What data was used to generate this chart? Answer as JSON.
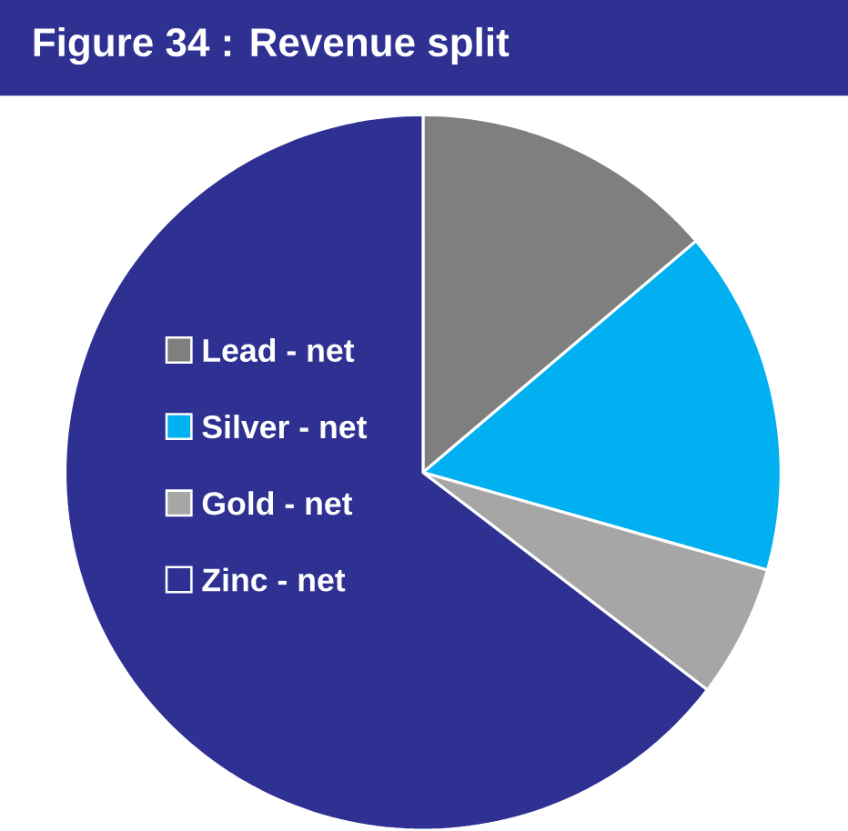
{
  "chart_data": {
    "type": "pie",
    "title": "Figure 34 : Revenue split",
    "categories": [
      "Lead - net",
      "Silver - net",
      "Gold - net",
      "Zinc - net"
    ],
    "values": [
      13.8,
      15.6,
      6.0,
      64.6
    ],
    "colors": [
      "#7f7f7f",
      "#00b0f0",
      "#a6a6a6",
      "#2e3192"
    ],
    "legend": "left"
  }
}
